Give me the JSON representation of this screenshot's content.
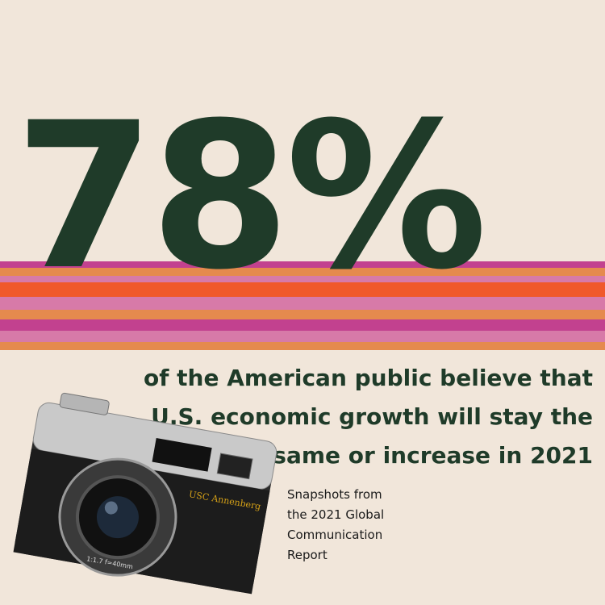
{
  "headline": "78%",
  "statement": [
    "of the American public believe that",
    "U.S. economic growth will stay the",
    "same or increase in 2021"
  ],
  "caption": [
    "Snapshots from",
    "the 2021 Global",
    "Communication",
    "Report"
  ],
  "camera": {
    "brand": "USC Annenberg",
    "lens_label": "1:1.7 f=40mm"
  }
}
